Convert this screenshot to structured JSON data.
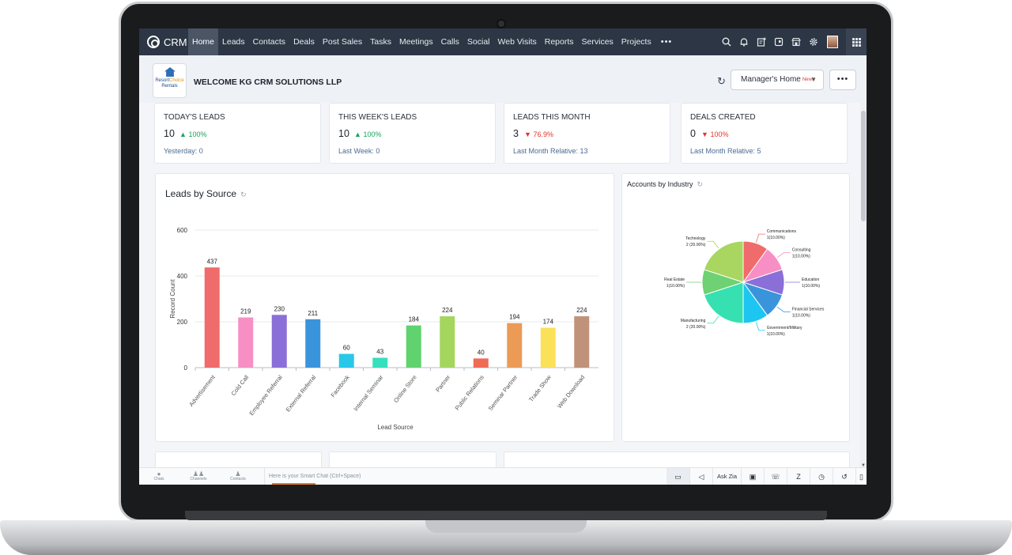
{
  "nav": {
    "logo_text": "CRM",
    "items": [
      "Home",
      "Leads",
      "Contacts",
      "Deals",
      "Post Sales",
      "Tasks",
      "Meetings",
      "Calls",
      "Social",
      "Web Visits",
      "Reports",
      "Services",
      "Projects"
    ],
    "more": "•••",
    "icons": [
      "search-icon",
      "bell-icon",
      "calendar-plus-icon",
      "tablet-icon",
      "store-icon",
      "gear-icon",
      "avatar",
      "apps-grid-icon"
    ]
  },
  "header": {
    "brand_line1": "Resort",
    "brand_line2": "Choice",
    "brand_line3": "Rentals",
    "welcome": "WELCOME KG CRM SOLUTIONS LLP",
    "home_select": "Manager's Home",
    "new_badge": "New!",
    "more": "•••"
  },
  "kpis": [
    {
      "title": "TODAY'S LEADS",
      "value": "10",
      "change": "100%",
      "direction": "up",
      "sub": "Yesterday: 0"
    },
    {
      "title": "THIS WEEK'S LEADS",
      "value": "10",
      "change": "100%",
      "direction": "up",
      "sub": "Last Week: 0"
    },
    {
      "title": "LEADS THIS MONTH",
      "value": "3",
      "change": "76.9%",
      "direction": "down",
      "sub": "Last Month Relative: 13"
    },
    {
      "title": "DEALS CREATED",
      "value": "0",
      "change": "100%",
      "direction": "down",
      "sub": "Last Month Relative: 5"
    }
  ],
  "chart_data": [
    {
      "type": "bar",
      "title": "Leads by Source",
      "xlabel": "Lead Source",
      "ylabel": "Record Count",
      "ylim": [
        0,
        600
      ],
      "yticks": [
        0,
        200,
        400,
        600
      ],
      "categories": [
        "Advertisement",
        "Cold Call",
        "Employee Referral",
        "External Referral",
        "Facebook",
        "Internal Seminar",
        "Online Store",
        "Partner",
        "Public Relations",
        "Seminar Partner",
        "Trade Show",
        "Web Download"
      ],
      "values": [
        437,
        219,
        230,
        211,
        60,
        43,
        184,
        224,
        40,
        194,
        174,
        224
      ],
      "colors": [
        "#f06b6b",
        "#f78fc4",
        "#8a6fd8",
        "#3a94dc",
        "#29c7e8",
        "#36e0bd",
        "#60d36f",
        "#a4d65e",
        "#f06b56",
        "#eb9b55",
        "#fbe05a",
        "#c1927a"
      ],
      "grid": true
    },
    {
      "type": "pie",
      "title": "Accounts by Industry",
      "slices": [
        {
          "label": "Communications",
          "value": 1,
          "pct": "1(10.00%)",
          "color": "#f06b6b"
        },
        {
          "label": "Consulting",
          "value": 1,
          "pct": "1(10.00%)",
          "color": "#f78fc4"
        },
        {
          "label": "Education",
          "value": 1,
          "pct": "1(10.00%)",
          "color": "#8a6fd8"
        },
        {
          "label": "Financial Services",
          "value": 1,
          "pct": "1(10.00%)",
          "color": "#3a94dc"
        },
        {
          "label": "Government/Military",
          "value": 1,
          "pct": "1(10.00%)",
          "color": "#1cc6f0"
        },
        {
          "label": "Manufacturing",
          "value": 2,
          "pct": "2 (20.00%)",
          "color": "#36e0b0"
        },
        {
          "label": "Real Estate",
          "value": 1,
          "pct": "1(10.00%)",
          "color": "#6ed173"
        },
        {
          "label": "Technology",
          "value": 2,
          "pct": "2 (20.00%)",
          "color": "#a8d660"
        }
      ]
    }
  ],
  "bottombar": {
    "tabs": [
      "Chats",
      "Channels",
      "Contacts"
    ],
    "chat_placeholder": "Here is your Smart Chat (Ctrl+Space)",
    "ask_zia": "Ask Zia"
  }
}
